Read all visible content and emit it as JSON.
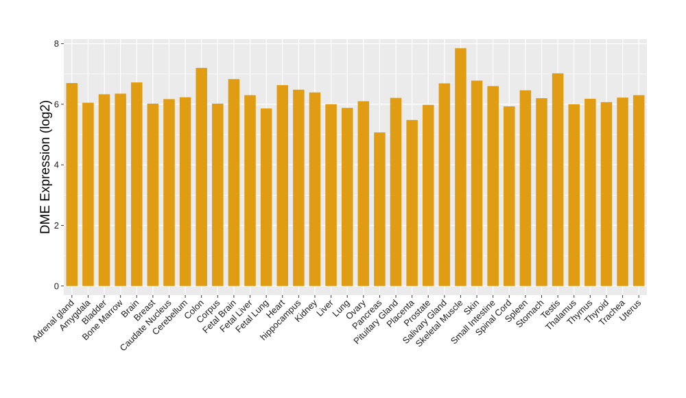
{
  "chart_data": {
    "type": "bar",
    "title": "",
    "xlabel": "",
    "ylabel": "DME Expression (log2)",
    "ylim": [
      -0.3,
      8.15
    ],
    "yticks": [
      0,
      2,
      4,
      6,
      8
    ],
    "grid": true,
    "legend": "none",
    "bar_color": "#E09C12",
    "panel_bg": "#EBEBEB",
    "grid_color": "#FFFFFF",
    "categories": [
      "Adrenal gland",
      "Amygdala",
      "Bladder",
      "Bone Marrow",
      "Brain",
      "Breast",
      "Caudate Nucleus",
      "Cerebellum",
      "Colon",
      "Corpus",
      "Fetal Brain",
      "Fetal Liver",
      "Fetal Lung",
      "Heart",
      "hippocampus",
      "Kidney",
      "Liver",
      "Lung",
      "Ovary",
      "Pancreas",
      "Pituitary Gland",
      "Placenta",
      "Prostate",
      "Salivary Gland",
      "Skeletal Muscle",
      "Skin",
      "Small Intestine",
      "Spinal Cord",
      "Spleen",
      "Stomach",
      "Testis",
      "Thalamus",
      "Thymus",
      "Thyroid",
      "Trachea",
      "Uterus"
    ],
    "values": [
      6.7,
      6.05,
      6.33,
      6.35,
      6.72,
      6.02,
      6.17,
      6.23,
      7.2,
      6.02,
      6.83,
      6.3,
      5.86,
      6.63,
      6.48,
      6.39,
      6.0,
      5.88,
      6.1,
      5.07,
      6.21,
      5.48,
      5.98,
      6.69,
      7.85,
      6.78,
      6.6,
      5.93,
      6.46,
      6.2,
      7.02,
      6.0,
      6.18,
      6.07,
      6.22,
      6.3
    ]
  }
}
